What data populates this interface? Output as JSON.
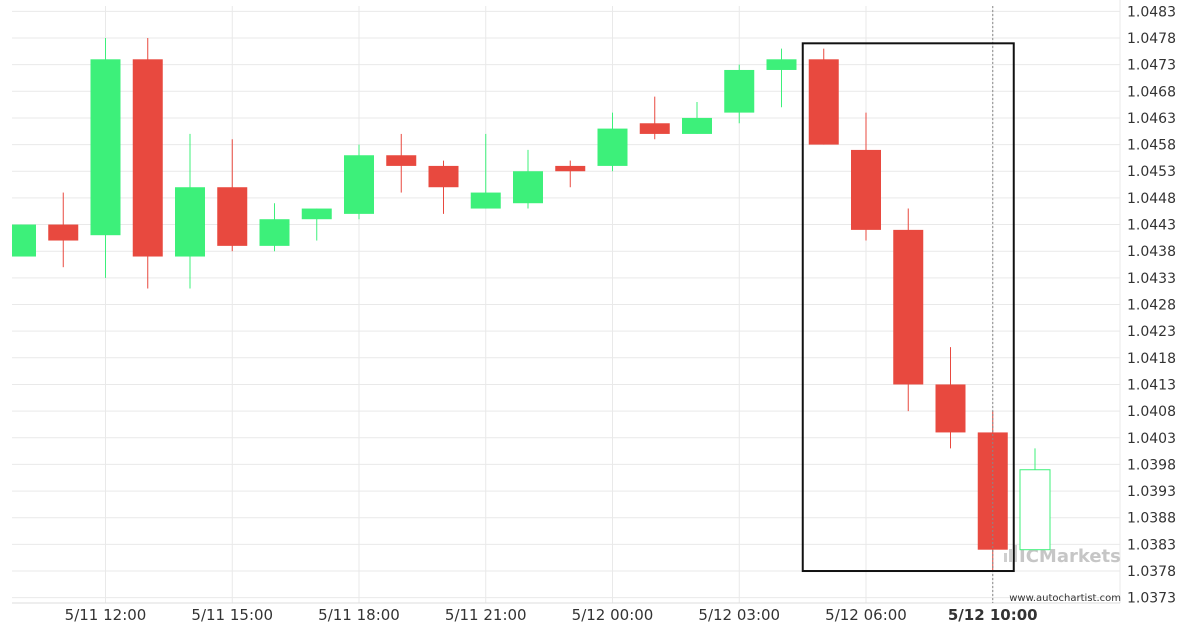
{
  "chart_data": {
    "type": "candlestick",
    "title": "",
    "xlabel": "",
    "ylabel": "",
    "ylim": [
      1.0372,
      1.0484
    ],
    "y_ticks": [
      "1.0483",
      "1.0478",
      "1.0473",
      "1.0468",
      "1.0463",
      "1.0458",
      "1.0453",
      "1.0448",
      "1.0443",
      "1.0438",
      "1.0433",
      "1.0428",
      "1.0423",
      "1.0418",
      "1.0413",
      "1.0408",
      "1.0403",
      "1.0398",
      "1.0393",
      "1.0388",
      "1.0383",
      "1.0378",
      "1.0373"
    ],
    "x_ticks": [
      {
        "index": 2,
        "label": "5/11 12:00",
        "bold": false
      },
      {
        "index": 5,
        "label": "5/11 15:00",
        "bold": false
      },
      {
        "index": 8,
        "label": "5/11 18:00",
        "bold": false
      },
      {
        "index": 11,
        "label": "5/11 21:00",
        "bold": false
      },
      {
        "index": 14,
        "label": "5/12 00:00",
        "bold": false
      },
      {
        "index": 17,
        "label": "5/12 03:00",
        "bold": false
      },
      {
        "index": 20,
        "label": "5/12 06:00",
        "bold": false
      },
      {
        "index": 23,
        "label": "5/12 10:00",
        "bold": true
      }
    ],
    "candles": [
      {
        "open": 1.0437,
        "high": 1.0443,
        "low": 1.0437,
        "close": 1.0443
      },
      {
        "open": 1.0443,
        "high": 1.0449,
        "low": 1.0435,
        "close": 1.044
      },
      {
        "open": 1.0441,
        "high": 1.0478,
        "low": 1.0433,
        "close": 1.0474
      },
      {
        "open": 1.0474,
        "high": 1.0478,
        "low": 1.0431,
        "close": 1.0437
      },
      {
        "open": 1.0437,
        "high": 1.046,
        "low": 1.0431,
        "close": 1.045
      },
      {
        "open": 1.045,
        "high": 1.0459,
        "low": 1.0438,
        "close": 1.0439
      },
      {
        "open": 1.0439,
        "high": 1.0447,
        "low": 1.0438,
        "close": 1.0444
      },
      {
        "open": 1.0444,
        "high": 1.0446,
        "low": 1.044,
        "close": 1.0446
      },
      {
        "open": 1.0445,
        "high": 1.0458,
        "low": 1.0444,
        "close": 1.0456
      },
      {
        "open": 1.0456,
        "high": 1.046,
        "low": 1.0449,
        "close": 1.0454
      },
      {
        "open": 1.0454,
        "high": 1.0455,
        "low": 1.0445,
        "close": 1.045
      },
      {
        "open": 1.0446,
        "high": 1.046,
        "low": 1.0446,
        "close": 1.0449
      },
      {
        "open": 1.0447,
        "high": 1.0457,
        "low": 1.0446,
        "close": 1.0453
      },
      {
        "open": 1.0454,
        "high": 1.0455,
        "low": 1.045,
        "close": 1.0453
      },
      {
        "open": 1.0454,
        "high": 1.0464,
        "low": 1.0453,
        "close": 1.0461
      },
      {
        "open": 1.0462,
        "high": 1.0467,
        "low": 1.0459,
        "close": 1.046
      },
      {
        "open": 1.046,
        "high": 1.0466,
        "low": 1.046,
        "close": 1.0463
      },
      {
        "open": 1.0464,
        "high": 1.0473,
        "low": 1.0462,
        "close": 1.0472
      },
      {
        "open": 1.0472,
        "high": 1.0476,
        "low": 1.0465,
        "close": 1.0474
      },
      {
        "open": 1.0474,
        "high": 1.0476,
        "low": 1.0458,
        "close": 1.0458
      },
      {
        "open": 1.0457,
        "high": 1.0464,
        "low": 1.044,
        "close": 1.0442
      },
      {
        "open": 1.0442,
        "high": 1.0446,
        "low": 1.0408,
        "close": 1.0413
      },
      {
        "open": 1.0413,
        "high": 1.042,
        "low": 1.0401,
        "close": 1.0404
      },
      {
        "open": 1.0404,
        "high": 1.0408,
        "low": 1.0378,
        "close": 1.0382
      },
      {
        "open": 1.0382,
        "high": 1.0401,
        "low": 1.0382,
        "close": 1.0397
      }
    ],
    "highlight_range": {
      "from_index": 19,
      "to_index": 23,
      "low": 1.0378,
      "high": 1.0477
    },
    "current_marker_index": 23,
    "colors": {
      "up": "#3df07a",
      "down": "#e8493f",
      "grid": "#e9e9e9",
      "axis_text": "#333333",
      "box": "#111111",
      "last_candle_outline": "#3df07a"
    },
    "watermark": "ICMarkets",
    "source_text": "www.autochartist.com"
  }
}
